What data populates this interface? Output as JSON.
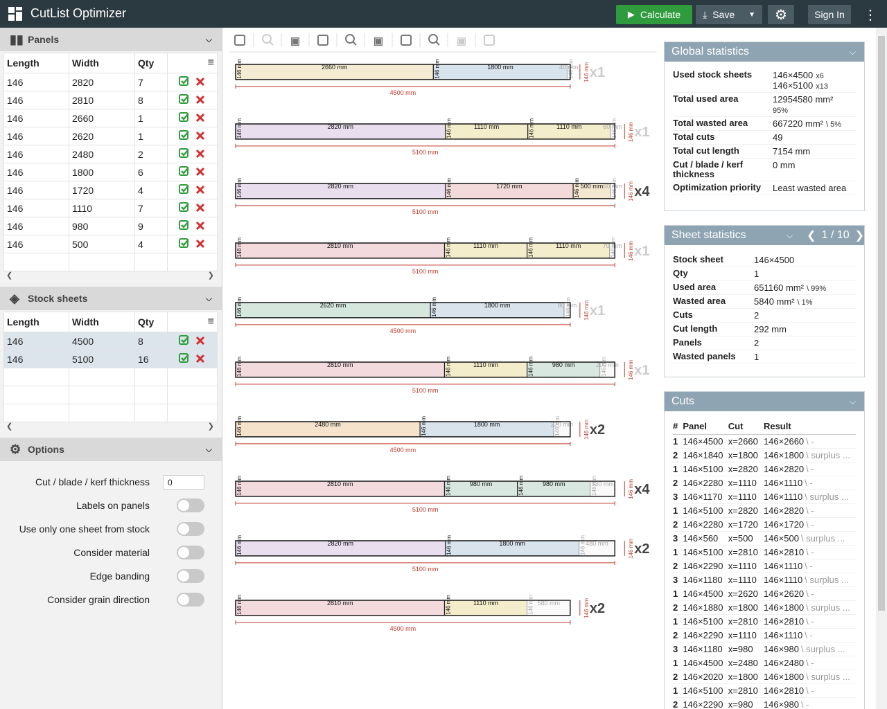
{
  "header": {
    "title": "CutList Optimizer",
    "calculate": "Calculate",
    "save": "Save",
    "sign_in": "Sign In"
  },
  "panels": {
    "title": "Panels",
    "columns": [
      "Length",
      "Width",
      "Qty"
    ],
    "rows": [
      [
        146,
        2820,
        7
      ],
      [
        146,
        2810,
        8
      ],
      [
        146,
        2660,
        1
      ],
      [
        146,
        2620,
        1
      ],
      [
        146,
        2480,
        2
      ],
      [
        146,
        1800,
        6
      ],
      [
        146,
        1720,
        4
      ],
      [
        146,
        1110,
        7
      ],
      [
        146,
        980,
        9
      ],
      [
        146,
        500,
        4
      ]
    ]
  },
  "stock": {
    "title": "Stock sheets",
    "columns": [
      "Length",
      "Width",
      "Qty"
    ],
    "rows": [
      [
        146,
        4500,
        8
      ],
      [
        146,
        5100,
        16
      ]
    ]
  },
  "options": {
    "title": "Options",
    "kerf": {
      "label": "Cut / blade / kerf thickness",
      "value": "0"
    },
    "toggles": [
      "Labels on panels",
      "Use only one sheet from stock",
      "Consider material",
      "Edge banding",
      "Consider grain direction"
    ]
  },
  "sheets": [
    {
      "length": {
        "value": 4500,
        "label": "4500 mm"
      },
      "width": {
        "value": 146,
        "label": "146 mm"
      },
      "qty": {
        "value": 1,
        "label": "x1"
      },
      "parts": [
        {
          "value": 2660,
          "label": "2660 mm",
          "color": "#f4ecd2"
        },
        {
          "value": 1800,
          "label": "1800 mm",
          "color": "#d8e3ec"
        }
      ],
      "waste": {
        "value": 40,
        "label": "40 mm"
      }
    },
    {
      "length": {
        "value": 5100,
        "label": "5100 mm"
      },
      "width": {
        "value": 146,
        "label": "146 mm"
      },
      "qty": {
        "value": 1,
        "label": "x1"
      },
      "parts": [
        {
          "value": 2820,
          "label": "2820 mm",
          "color": "#e8deee"
        },
        {
          "value": 1110,
          "label": "1110 mm",
          "color": "#f4edcb"
        },
        {
          "value": 1110,
          "label": "1110 mm",
          "color": "#f4edcb"
        }
      ],
      "waste": {
        "value": 60,
        "label": "60 mm"
      }
    },
    {
      "length": {
        "value": 5100,
        "label": "5100 mm"
      },
      "width": {
        "value": 146,
        "label": "146 mm"
      },
      "qty": {
        "value": 4,
        "label": "x4"
      },
      "parts": [
        {
          "value": 2820,
          "label": "2820 mm",
          "color": "#e8deee"
        },
        {
          "value": 1720,
          "label": "1720 mm",
          "color": "#f2dada"
        },
        {
          "value": 500,
          "label": "500 mm",
          "color": "#f4e7d0"
        }
      ],
      "waste": {
        "value": 60,
        "label": "60 mm"
      }
    },
    {
      "length": {
        "value": 5100,
        "label": "5100 mm"
      },
      "width": {
        "value": 146,
        "label": "146 mm"
      },
      "qty": {
        "value": 1,
        "label": "x1"
      },
      "parts": [
        {
          "value": 2810,
          "label": "2810 mm",
          "color": "#f2dadd"
        },
        {
          "value": 1110,
          "label": "1110 mm",
          "color": "#f4edcb"
        },
        {
          "value": 1110,
          "label": "1110 mm",
          "color": "#f4edcb"
        }
      ],
      "waste": {
        "value": 70,
        "label": "70 mm"
      }
    },
    {
      "length": {
        "value": 4500,
        "label": "4500 mm"
      },
      "width": {
        "value": 146,
        "label": "146 mm"
      },
      "qty": {
        "value": 1,
        "label": "x1"
      },
      "parts": [
        {
          "value": 2620,
          "label": "2620 mm",
          "color": "#d6e7de"
        },
        {
          "value": 1800,
          "label": "1800 mm",
          "color": "#d8e3ec"
        }
      ],
      "waste": {
        "value": 80,
        "label": "80 mm"
      }
    },
    {
      "length": {
        "value": 5100,
        "label": "5100 mm"
      },
      "width": {
        "value": 146,
        "label": "146 mm"
      },
      "qty": {
        "value": 1,
        "label": "x1"
      },
      "parts": [
        {
          "value": 2810,
          "label": "2810 mm",
          "color": "#f2dadd"
        },
        {
          "value": 1110,
          "label": "1110 mm",
          "color": "#f4edcb"
        },
        {
          "value": 980,
          "label": "980 mm",
          "color": "#d8e8e0"
        }
      ],
      "waste": {
        "value": 200,
        "label": "200 mm"
      }
    },
    {
      "length": {
        "value": 4500,
        "label": "4500 mm"
      },
      "width": {
        "value": 146,
        "label": "146 mm"
      },
      "qty": {
        "value": 2,
        "label": "x2"
      },
      "parts": [
        {
          "value": 2480,
          "label": "2480 mm",
          "color": "#f5e4cb"
        },
        {
          "value": 1800,
          "label": "1800 mm",
          "color": "#d8e3ec"
        }
      ],
      "waste": {
        "value": 220,
        "label": "220 mm"
      }
    },
    {
      "length": {
        "value": 5100,
        "label": "5100 mm"
      },
      "width": {
        "value": 146,
        "label": "146 mm"
      },
      "qty": {
        "value": 4,
        "label": "x4"
      },
      "parts": [
        {
          "value": 2810,
          "label": "2810 mm",
          "color": "#f2dadd"
        },
        {
          "value": 980,
          "label": "980 mm",
          "color": "#d8e8e0"
        },
        {
          "value": 980,
          "label": "980 mm",
          "color": "#d8e8e0"
        }
      ],
      "waste": {
        "value": 330,
        "label": "330 mm"
      }
    },
    {
      "length": {
        "value": 5100,
        "label": "5100 mm"
      },
      "width": {
        "value": 146,
        "label": "146 mm"
      },
      "qty": {
        "value": 2,
        "label": "x2"
      },
      "parts": [
        {
          "value": 2820,
          "label": "2820 mm",
          "color": "#e8deee"
        },
        {
          "value": 1800,
          "label": "1800 mm",
          "color": "#d8e3ec"
        }
      ],
      "waste": {
        "value": 480,
        "label": "480 mm"
      }
    },
    {
      "length": {
        "value": 4500,
        "label": "4500 mm"
      },
      "width": {
        "value": 146,
        "label": "146 mm"
      },
      "qty": {
        "value": 2,
        "label": "x2"
      },
      "parts": [
        {
          "value": 2810,
          "label": "2810 mm",
          "color": "#f2dadd"
        },
        {
          "value": 1110,
          "label": "1110 mm",
          "color": "#f4edcb"
        }
      ],
      "waste": {
        "value": 580,
        "label": "580 mm"
      }
    }
  ],
  "global_statistics": {
    "title": "Global statistics",
    "rows": [
      {
        "label": "Used stock sheets",
        "lines": [
          {
            "value": "146×4500",
            "note": "x6"
          },
          {
            "value": "146×5100",
            "note": "x13"
          }
        ]
      },
      {
        "label": "Total used area",
        "lines": [
          {
            "value": "12954580 mm²"
          },
          {
            "note": "95%"
          }
        ]
      },
      {
        "label": "Total wasted area",
        "lines": [
          {
            "value": "667220 mm²",
            "note": "\\ 5%"
          }
        ]
      },
      {
        "label": "Total cuts",
        "lines": [
          {
            "value": "49"
          }
        ]
      },
      {
        "label": "Total cut length",
        "lines": [
          {
            "value": "7154 mm"
          }
        ]
      },
      {
        "label": "Cut / blade / kerf thickness",
        "lines": [
          {
            "value": "0 mm"
          }
        ]
      },
      {
        "label": "Optimization priority",
        "lines": [
          {
            "value": "Least wasted area"
          }
        ]
      }
    ]
  },
  "sheet_statistics": {
    "title": "Sheet statistics",
    "page": "1 / 10",
    "rows": [
      {
        "label": "Stock sheet",
        "value": "146×4500"
      },
      {
        "label": "Qty",
        "value": "1"
      },
      {
        "label": "Used area",
        "value": "651160 mm²",
        "note": "\\ 99%"
      },
      {
        "label": "Wasted area",
        "value": "5840 mm²",
        "note": "\\ 1%"
      },
      {
        "label": "Cuts",
        "value": "2"
      },
      {
        "label": "Cut length",
        "value": "292 mm"
      },
      {
        "label": "Panels",
        "value": "2"
      },
      {
        "label": "Wasted panels",
        "value": "1"
      }
    ]
  },
  "cuts": {
    "title": "Cuts",
    "columns": [
      "#",
      "Panel",
      "Cut",
      "Result"
    ],
    "rows": [
      [
        "1",
        "146×4500",
        "x=2660",
        "146×2660",
        "\\ -"
      ],
      [
        "2",
        "146×1840",
        "x=1800",
        "146×1800",
        "\\ surplus ..."
      ],
      [
        "1",
        "146×5100",
        "x=2820",
        "146×2820",
        "\\ -"
      ],
      [
        "2",
        "146×2280",
        "x=1110",
        "146×1110",
        "\\ -"
      ],
      [
        "3",
        "146×1170",
        "x=1110",
        "146×1110",
        "\\ surplus ..."
      ],
      [
        "1",
        "146×5100",
        "x=2820",
        "146×2820",
        "\\ -"
      ],
      [
        "2",
        "146×2280",
        "x=1720",
        "146×1720",
        "\\ -"
      ],
      [
        "3",
        "146×560",
        "x=500",
        "146×500",
        "\\ surplus ..."
      ],
      [
        "1",
        "146×5100",
        "x=2810",
        "146×2810",
        "\\ -"
      ],
      [
        "2",
        "146×2290",
        "x=1110",
        "146×1110",
        "\\ -"
      ],
      [
        "3",
        "146×1180",
        "x=1110",
        "146×1110",
        "\\ surplus ..."
      ],
      [
        "1",
        "146×4500",
        "x=2620",
        "146×2620",
        "\\ -"
      ],
      [
        "2",
        "146×1880",
        "x=1800",
        "146×1800",
        "\\ surplus ..."
      ],
      [
        "1",
        "146×5100",
        "x=2810",
        "146×2810",
        "\\ -"
      ],
      [
        "2",
        "146×2290",
        "x=1110",
        "146×1110",
        "\\ -"
      ],
      [
        "3",
        "146×1180",
        "x=980",
        "146×980",
        "\\ surplus ..."
      ],
      [
        "1",
        "146×4500",
        "x=2480",
        "146×2480",
        "\\ -"
      ],
      [
        "2",
        "146×2020",
        "x=1800",
        "146×1800",
        "\\ surplus ..."
      ],
      [
        "1",
        "146×5100",
        "x=2810",
        "146×2810",
        "\\ -"
      ],
      [
        "2",
        "146×2290",
        "x=980",
        "146×980",
        "\\ -"
      ]
    ]
  }
}
